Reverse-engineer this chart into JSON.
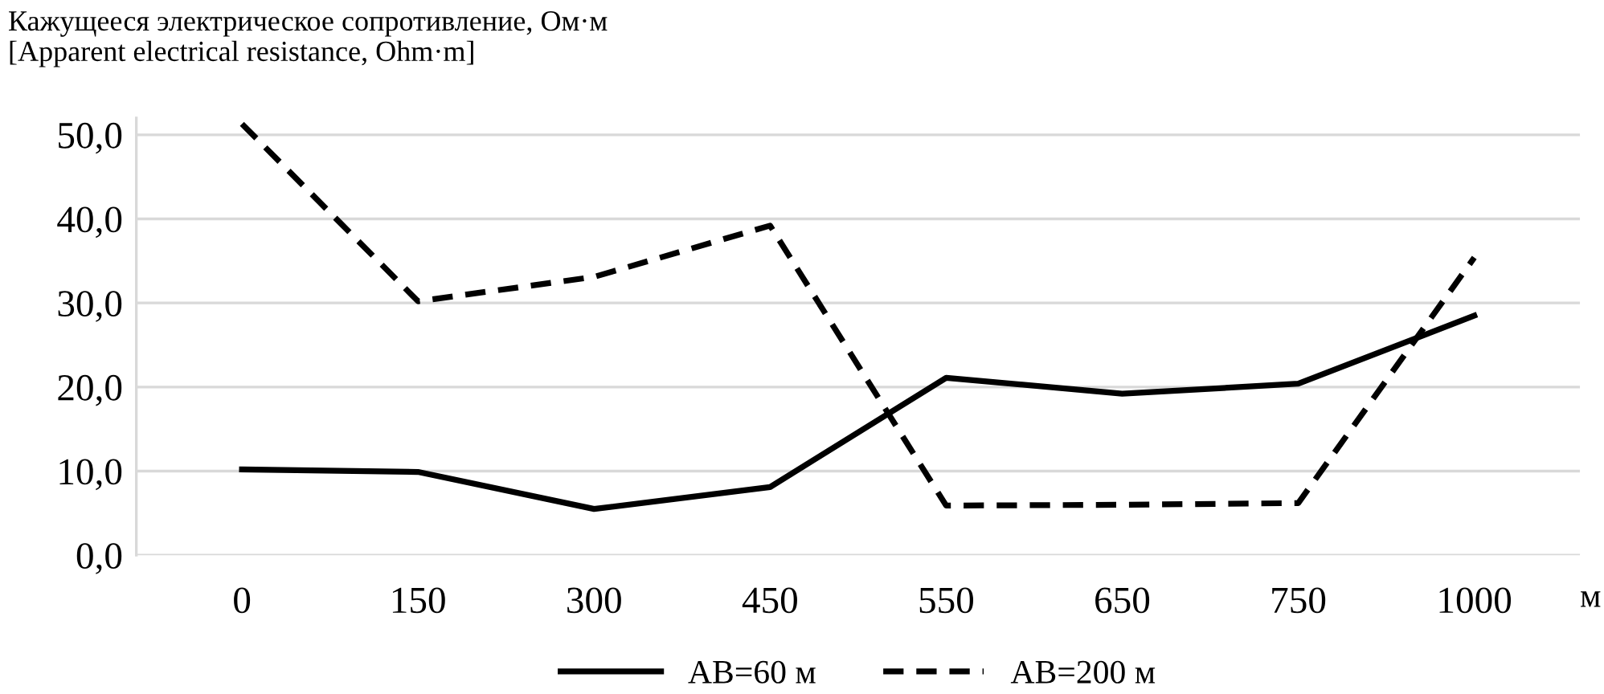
{
  "chart_data": {
    "type": "line",
    "title": "Кажущееся электрическое сопротивление, Ом·м\n[Apparent electrical resistance, Ohm·m]",
    "xlabel": "м",
    "categories": [
      "0",
      "150",
      "300",
      "450",
      "550",
      "650",
      "750",
      "1000"
    ],
    "series": [
      {
        "name": "AB=60 м",
        "color": "#000000",
        "line_style": "solid",
        "values": [
          10.2,
          9.9,
          5.5,
          8.1,
          21.1,
          19.2,
          20.4,
          28.5
        ]
      },
      {
        "name": "AB=200 м",
        "color": "#000000",
        "line_style": "dashed",
        "values": [
          51.3,
          30.2,
          33.1,
          39.2,
          5.9,
          6.0,
          6.2,
          35.4
        ]
      }
    ],
    "ylim": [
      0,
      52
    ],
    "yticks": [
      {
        "value": 0,
        "label": "0,0"
      },
      {
        "value": 10,
        "label": "10,0"
      },
      {
        "value": 20,
        "label": "20,0"
      },
      {
        "value": 30,
        "label": "30,0"
      },
      {
        "value": 40,
        "label": "40,0"
      },
      {
        "value": 50,
        "label": "50,0"
      }
    ],
    "grid": "y",
    "legend": "bottom",
    "marker": "none"
  }
}
